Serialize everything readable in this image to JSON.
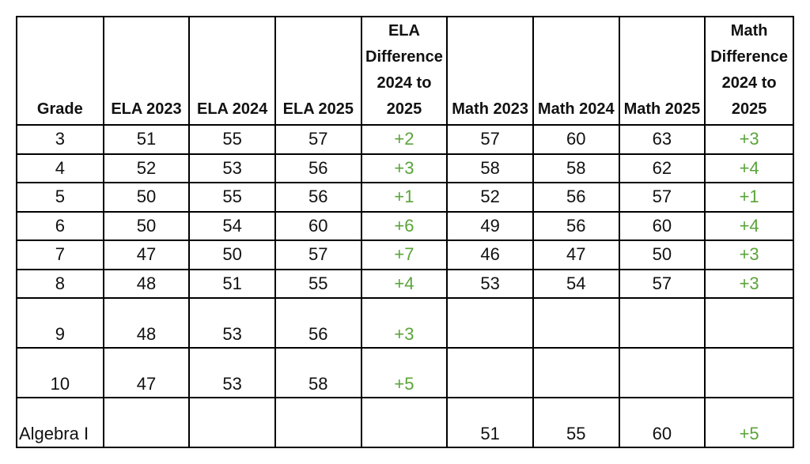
{
  "table": {
    "headers": [
      "Grade",
      "ELA 2023",
      "ELA 2024",
      "ELA 2025",
      "ELA Difference 2024 to 2025",
      "Math 2023",
      "Math 2024",
      "Math 2025",
      "Math Difference 2024 to 2025"
    ],
    "rows": [
      [
        "3",
        "51",
        "55",
        "57",
        "+2",
        "57",
        "60",
        "63",
        "+3"
      ],
      [
        "4",
        "52",
        "53",
        "56",
        "+3",
        "58",
        "58",
        "62",
        "+4"
      ],
      [
        "5",
        "50",
        "55",
        "56",
        "+1",
        "52",
        "56",
        "57",
        "+1"
      ],
      [
        "6",
        "50",
        "54",
        "60",
        "+6",
        "49",
        "56",
        "60",
        "+4"
      ],
      [
        "7",
        "47",
        "50",
        "57",
        "+7",
        "46",
        "47",
        "50",
        "+3"
      ],
      [
        "8",
        "48",
        "51",
        "55",
        "+4",
        "53",
        "54",
        "57",
        "+3"
      ],
      [
        "9",
        "48",
        "53",
        "56",
        "+3",
        "",
        "",
        "",
        ""
      ],
      [
        "10",
        "47",
        "53",
        "58",
        "+5",
        "",
        "",
        "",
        ""
      ],
      [
        "Algebra I",
        "",
        "",
        "",
        "",
        "51",
        "55",
        "60",
        "+5"
      ]
    ],
    "colors": {
      "difference_text": "#5aa43a",
      "border": "#000000",
      "text": "#111111"
    }
  }
}
